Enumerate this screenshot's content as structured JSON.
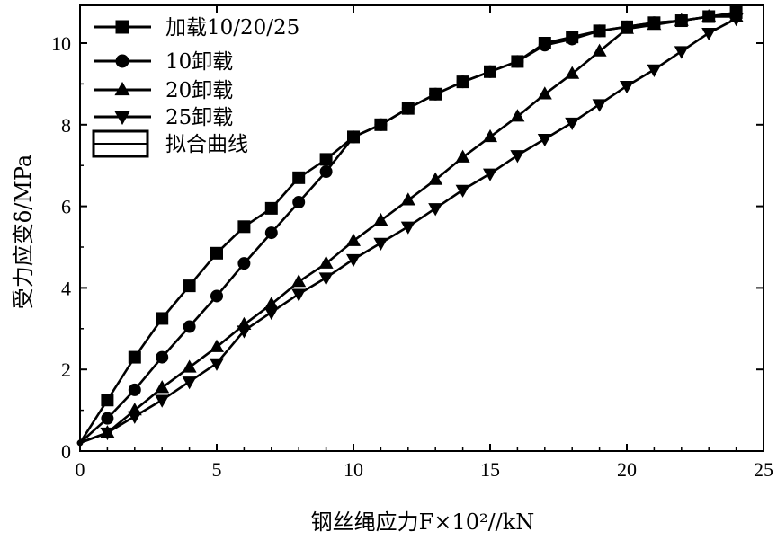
{
  "chart_data": {
    "type": "line",
    "xlabel": "钢丝绳应力F×10²//kN",
    "ylabel": "受力应变δ/MPa",
    "xlim": [
      0,
      25
    ],
    "ylim": [
      0,
      11
    ],
    "xticks": [
      "0",
      "5",
      "10",
      "15",
      "20",
      "25"
    ],
    "yticks": [
      "0",
      "2",
      "4",
      "6",
      "8",
      "10"
    ],
    "xtick_values": [
      0,
      5,
      10,
      15,
      20,
      25
    ],
    "ytick_values": [
      0,
      2,
      4,
      6,
      8,
      10
    ],
    "legend_position": "top-left",
    "grid": false,
    "series": [
      {
        "name": "加载10/20/25",
        "marker": "square",
        "x": [
          0,
          1,
          2,
          3,
          4,
          5,
          6,
          7,
          8,
          9,
          10,
          11,
          12,
          13,
          14,
          15,
          16,
          17,
          18,
          19,
          20,
          21,
          22,
          23,
          24
        ],
        "y": [
          0.2,
          1.25,
          2.3,
          3.25,
          4.05,
          4.85,
          5.5,
          5.95,
          6.7,
          7.15,
          7.7,
          8.0,
          8.4,
          8.75,
          9.05,
          9.3,
          9.55,
          10.0,
          10.15,
          10.3,
          10.4,
          10.5,
          10.55,
          10.65,
          10.75
        ]
      },
      {
        "name": "10卸载",
        "marker": "circle",
        "x": [
          0,
          1,
          2,
          3,
          4,
          5,
          6,
          7,
          8,
          9,
          10,
          11,
          12,
          13,
          14,
          15,
          16,
          17,
          18,
          19,
          20,
          21,
          22,
          23,
          24
        ],
        "y": [
          0.2,
          0.8,
          1.5,
          2.3,
          3.05,
          3.8,
          4.6,
          5.35,
          6.1,
          6.85,
          7.7,
          8.0,
          8.4,
          8.75,
          9.05,
          9.3,
          9.55,
          9.95,
          10.1,
          10.3,
          10.4,
          10.5,
          10.55,
          10.65,
          10.7
        ]
      },
      {
        "name": "20卸载",
        "marker": "triangle-up",
        "x": [
          0,
          1,
          2,
          3,
          4,
          5,
          6,
          7,
          8,
          9,
          10,
          11,
          12,
          13,
          14,
          15,
          16,
          17,
          18,
          19,
          20,
          21,
          22,
          23,
          24
        ],
        "y": [
          0.2,
          0.45,
          1.0,
          1.55,
          2.05,
          2.55,
          3.1,
          3.6,
          4.15,
          4.6,
          5.15,
          5.65,
          6.15,
          6.65,
          7.2,
          7.7,
          8.2,
          8.75,
          9.25,
          9.8,
          10.35,
          10.45,
          10.55,
          10.65,
          10.65
        ]
      },
      {
        "name": "25卸载",
        "marker": "triangle-down",
        "x": [
          0,
          1,
          2,
          3,
          4,
          5,
          6,
          7,
          8,
          9,
          10,
          11,
          12,
          13,
          14,
          15,
          16,
          17,
          18,
          19,
          20,
          21,
          22,
          23,
          24
        ],
        "y": [
          0.2,
          0.45,
          0.85,
          1.25,
          1.7,
          2.15,
          2.95,
          3.4,
          3.85,
          4.25,
          4.7,
          5.1,
          5.5,
          5.95,
          6.4,
          6.8,
          7.25,
          7.65,
          8.05,
          8.5,
          8.95,
          9.35,
          9.8,
          10.25,
          10.6
        ]
      }
    ],
    "legend_extra": {
      "label": "拟合曲线",
      "symbol": "open-rectangle"
    }
  }
}
